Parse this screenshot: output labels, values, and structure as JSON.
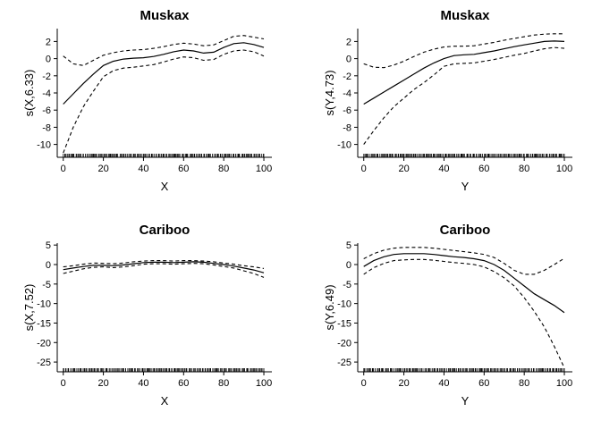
{
  "chart_data": [
    {
      "type": "line",
      "title": "Muskax",
      "xlabel": "X",
      "ylabel": "s(X,6.33)",
      "xlim": [
        -3,
        104
      ],
      "ylim": [
        -11.5,
        3.5
      ],
      "xticks": [
        0,
        20,
        40,
        60,
        80,
        100
      ],
      "yticks": [
        -10,
        -8,
        -6,
        -4,
        -2,
        0,
        2
      ],
      "grid": false,
      "x": [
        0,
        5,
        10,
        15,
        20,
        25,
        30,
        35,
        40,
        45,
        50,
        55,
        60,
        65,
        70,
        75,
        80,
        85,
        90,
        95,
        100
      ],
      "series": [
        {
          "role": "fit",
          "values": [
            -5.3,
            -4.1,
            -2.9,
            -1.8,
            -0.8,
            -0.3,
            -0.05,
            0.05,
            0.1,
            0.25,
            0.5,
            0.8,
            1.0,
            0.9,
            0.65,
            0.75,
            1.3,
            1.75,
            1.85,
            1.65,
            1.3
          ]
        },
        {
          "role": "upper",
          "values": [
            0.3,
            -0.6,
            -0.8,
            -0.2,
            0.4,
            0.7,
            0.9,
            1.0,
            1.05,
            1.2,
            1.4,
            1.65,
            1.8,
            1.7,
            1.5,
            1.6,
            2.1,
            2.6,
            2.7,
            2.5,
            2.3
          ]
        },
        {
          "role": "lower",
          "values": [
            -11.0,
            -8.0,
            -5.6,
            -3.8,
            -2.1,
            -1.4,
            -1.1,
            -1.0,
            -0.85,
            -0.7,
            -0.4,
            -0.05,
            0.2,
            0.1,
            -0.2,
            -0.1,
            0.5,
            0.9,
            1.0,
            0.8,
            0.3
          ]
        }
      ]
    },
    {
      "type": "line",
      "title": "Muskax",
      "xlabel": "Y",
      "ylabel": "s(Y,4.73)",
      "xlim": [
        -3,
        104
      ],
      "ylim": [
        -11.5,
        3.5
      ],
      "xticks": [
        0,
        20,
        40,
        60,
        80,
        100
      ],
      "yticks": [
        -10,
        -8,
        -6,
        -4,
        -2,
        0,
        2
      ],
      "grid": false,
      "x": [
        0,
        5,
        10,
        15,
        20,
        25,
        30,
        35,
        40,
        45,
        50,
        55,
        60,
        65,
        70,
        75,
        80,
        85,
        90,
        95,
        100
      ],
      "series": [
        {
          "role": "fit",
          "values": [
            -5.3,
            -4.6,
            -3.9,
            -3.2,
            -2.5,
            -1.8,
            -1.1,
            -0.5,
            0.0,
            0.35,
            0.45,
            0.5,
            0.7,
            0.9,
            1.15,
            1.4,
            1.6,
            1.8,
            2.0,
            2.05,
            2.0
          ]
        },
        {
          "role": "upper",
          "values": [
            -0.6,
            -1.0,
            -1.05,
            -0.75,
            -0.3,
            0.25,
            0.75,
            1.1,
            1.35,
            1.45,
            1.45,
            1.5,
            1.7,
            1.9,
            2.15,
            2.35,
            2.55,
            2.75,
            2.85,
            2.9,
            2.9
          ]
        },
        {
          "role": "lower",
          "values": [
            -10.0,
            -8.4,
            -6.9,
            -5.6,
            -4.6,
            -3.6,
            -2.8,
            -1.9,
            -0.9,
            -0.6,
            -0.55,
            -0.5,
            -0.3,
            -0.1,
            0.15,
            0.4,
            0.6,
            0.9,
            1.15,
            1.3,
            1.2
          ]
        }
      ]
    },
    {
      "type": "line",
      "title": "Cariboo",
      "xlabel": "X",
      "ylabel": "s(X,7.52)",
      "xlim": [
        -3,
        104
      ],
      "ylim": [
        -27.5,
        5.5
      ],
      "xticks": [
        0,
        20,
        40,
        60,
        80,
        100
      ],
      "yticks": [
        -25,
        -20,
        -15,
        -10,
        -5,
        0,
        5
      ],
      "grid": false,
      "x": [
        0,
        5,
        10,
        15,
        20,
        25,
        30,
        35,
        40,
        45,
        50,
        55,
        60,
        65,
        70,
        75,
        80,
        85,
        90,
        95,
        100
      ],
      "series": [
        {
          "role": "fit",
          "values": [
            -1.3,
            -0.9,
            -0.5,
            -0.2,
            -0.2,
            -0.3,
            -0.1,
            0.2,
            0.5,
            0.6,
            0.6,
            0.5,
            0.6,
            0.7,
            0.6,
            0.3,
            0.0,
            -0.4,
            -0.9,
            -1.4,
            -2.1
          ]
        },
        {
          "role": "upper",
          "values": [
            -0.6,
            -0.3,
            0.1,
            0.4,
            0.3,
            0.2,
            0.4,
            0.7,
            0.9,
            1.0,
            1.0,
            0.9,
            1.0,
            1.0,
            0.9,
            0.7,
            0.4,
            0.1,
            -0.3,
            -0.6,
            -1.0
          ]
        },
        {
          "role": "lower",
          "values": [
            -2.3,
            -1.7,
            -1.1,
            -0.7,
            -0.6,
            -0.8,
            -0.6,
            -0.3,
            0.1,
            0.2,
            0.2,
            0.1,
            0.2,
            0.3,
            0.2,
            -0.1,
            -0.5,
            -0.9,
            -1.6,
            -2.3,
            -3.3
          ]
        }
      ]
    },
    {
      "type": "line",
      "title": "Cariboo",
      "xlabel": "Y",
      "ylabel": "s(Y,6.49)",
      "xlim": [
        -3,
        104
      ],
      "ylim": [
        -27.5,
        5.5
      ],
      "xticks": [
        0,
        20,
        40,
        60,
        80,
        100
      ],
      "yticks": [
        -25,
        -20,
        -15,
        -10,
        -5,
        0,
        5
      ],
      "grid": false,
      "x": [
        0,
        5,
        10,
        15,
        20,
        25,
        30,
        35,
        40,
        45,
        50,
        55,
        60,
        65,
        70,
        75,
        80,
        85,
        90,
        95,
        100
      ],
      "series": [
        {
          "role": "fit",
          "values": [
            -0.5,
            1.0,
            2.0,
            2.6,
            2.8,
            2.8,
            2.8,
            2.6,
            2.3,
            2.0,
            1.8,
            1.5,
            1.0,
            0.0,
            -1.5,
            -3.5,
            -5.5,
            -7.5,
            -9.0,
            -10.5,
            -12.3
          ]
        },
        {
          "role": "upper",
          "values": [
            1.5,
            2.8,
            3.7,
            4.2,
            4.4,
            4.4,
            4.4,
            4.2,
            3.9,
            3.6,
            3.3,
            3.0,
            2.6,
            1.8,
            0.3,
            -1.5,
            -2.5,
            -2.5,
            -1.5,
            0.0,
            1.6
          ]
        },
        {
          "role": "lower",
          "values": [
            -2.5,
            -0.8,
            0.3,
            1.0,
            1.2,
            1.3,
            1.3,
            1.1,
            0.8,
            0.5,
            0.3,
            0.0,
            -0.6,
            -1.8,
            -3.4,
            -5.5,
            -8.5,
            -12.0,
            -16.0,
            -21.0,
            -26.5
          ]
        }
      ]
    }
  ]
}
